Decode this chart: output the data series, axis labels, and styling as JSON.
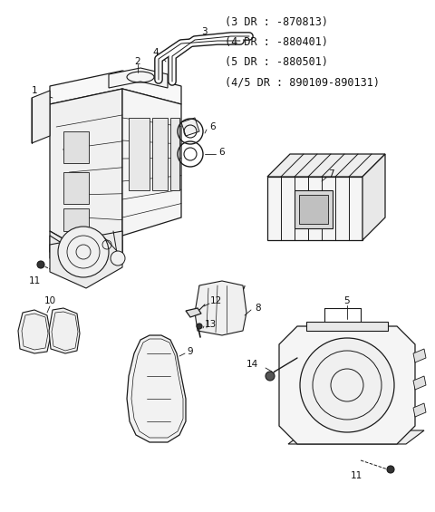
{
  "background_color": "#ffffff",
  "line_color": "#1a1a1a",
  "header_lines": [
    "(3 DR : -870813)",
    "(4 DR : -880401)",
    "(5 DR : -880501)",
    "(4/5 DR : 890109-890131)"
  ],
  "fig_width": 4.8,
  "fig_height": 5.65,
  "dpi": 100
}
